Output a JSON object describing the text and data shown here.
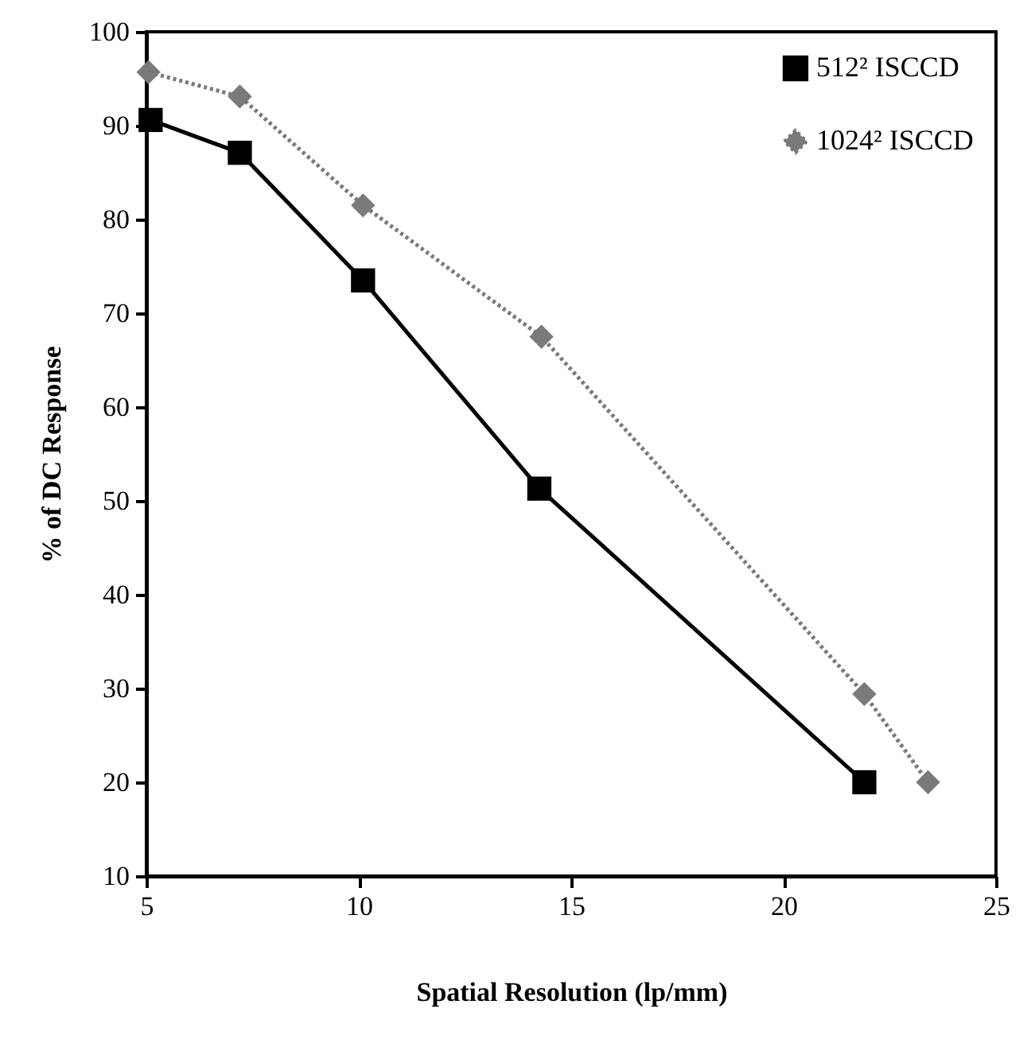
{
  "chart_data": {
    "type": "line",
    "xlabel": "Spatial Resolution (lp/mm)",
    "ylabel": "% of DC Response",
    "xlim": [
      5,
      25
    ],
    "xticks": [
      5,
      10,
      15,
      20,
      25
    ],
    "ylim": [
      10,
      100
    ],
    "yticks": [
      10,
      20,
      30,
      40,
      50,
      60,
      70,
      80,
      90,
      100
    ],
    "grid": false,
    "legend": "top right",
    "series": [
      {
        "name": "512² ISCCD",
        "color": "#000000",
        "marker": "square",
        "line_style": "solid",
        "x": [
          5.1,
          7.2,
          10.1,
          14.25,
          21.9
        ],
        "values": [
          90.6,
          87.1,
          73.5,
          51.3,
          20
        ]
      },
      {
        "name": "1024² ISCCD",
        "color": "#7a7a7a",
        "marker": "diamond",
        "line_style": "dotted",
        "x": [
          5.05,
          7.2,
          10.1,
          14.3,
          21.9,
          23.4
        ],
        "values": [
          95.7,
          93.1,
          81.5,
          67.5,
          29.4,
          20
        ]
      }
    ]
  }
}
